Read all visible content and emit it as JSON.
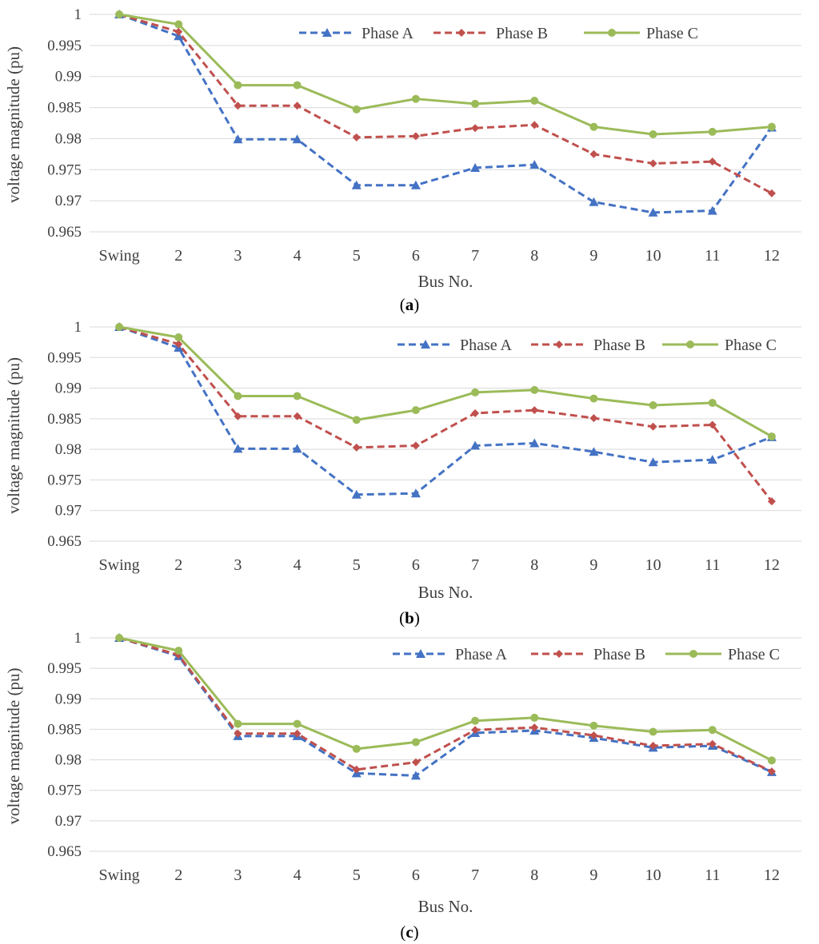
{
  "series_styles": [
    {
      "name": "Phase A",
      "color": "#4472c4",
      "dash": "dashed",
      "marker": "triangle"
    },
    {
      "name": "Phase B",
      "color": "#c0504d",
      "dash": "dashed",
      "marker": "diamond"
    },
    {
      "name": "Phase C",
      "color": "#9bbb59",
      "dash": "solid",
      "marker": "circle"
    }
  ],
  "chart_data": [
    {
      "type": "line",
      "caption": {
        "open": "(",
        "letter": "a",
        "close": ")"
      },
      "xlabel": "Bus No.",
      "ylabel": "voltage magnitude (pu)",
      "categories": [
        "Swing",
        "2",
        "3",
        "4",
        "5",
        "6",
        "7",
        "8",
        "9",
        "10",
        "11",
        "12"
      ],
      "ylim": [
        0.965,
        1
      ],
      "yticks": [
        "0.965",
        "0.97",
        "0.975",
        "0.98",
        "0.985",
        "0.99",
        "0.995",
        "1"
      ],
      "grid": true,
      "legend": "top-right",
      "series": [
        {
          "name": "Phase A",
          "values": [
            1.0,
            0.9965,
            0.9799,
            0.9799,
            0.9725,
            0.9725,
            0.9753,
            0.9758,
            0.9698,
            0.9681,
            0.9684,
            0.9818
          ]
        },
        {
          "name": "Phase B",
          "values": [
            1.0,
            0.9972,
            0.9853,
            0.9853,
            0.9802,
            0.9804,
            0.9817,
            0.9822,
            0.9775,
            0.976,
            0.9763,
            0.9712
          ]
        },
        {
          "name": "Phase C",
          "values": [
            1.0,
            0.9984,
            0.9886,
            0.9886,
            0.9847,
            0.9864,
            0.9856,
            0.9861,
            0.9819,
            0.9807,
            0.9811,
            0.9819
          ]
        }
      ]
    },
    {
      "type": "line",
      "caption": {
        "open": "(",
        "letter": "b",
        "close": ")"
      },
      "xlabel": "Bus No.",
      "ylabel": "voltage magnitude (pu)",
      "categories": [
        "Swing",
        "2",
        "3",
        "4",
        "5",
        "6",
        "7",
        "8",
        "9",
        "10",
        "11",
        "12"
      ],
      "ylim": [
        0.965,
        1
      ],
      "yticks": [
        "0.965",
        "0.97",
        "0.975",
        "0.98",
        "0.985",
        "0.99",
        "0.995",
        "1"
      ],
      "grid": true,
      "legend": "top-right",
      "series": [
        {
          "name": "Phase A",
          "values": [
            1.0,
            0.9966,
            0.9801,
            0.9801,
            0.9726,
            0.9728,
            0.9806,
            0.981,
            0.9796,
            0.9779,
            0.9783,
            0.982
          ]
        },
        {
          "name": "Phase B",
          "values": [
            1.0,
            0.9972,
            0.9854,
            0.9854,
            0.9803,
            0.9806,
            0.9859,
            0.9864,
            0.9851,
            0.9837,
            0.984,
            0.9715
          ]
        },
        {
          "name": "Phase C",
          "values": [
            1.0,
            0.9983,
            0.9887,
            0.9887,
            0.9848,
            0.9864,
            0.9893,
            0.9897,
            0.9883,
            0.9872,
            0.9876,
            0.9821
          ]
        }
      ]
    },
    {
      "type": "line",
      "caption": {
        "open": "(",
        "letter": "c",
        "close": ")"
      },
      "xlabel": "Bus No.",
      "ylabel": "voltage magnitude (pu)",
      "categories": [
        "Swing",
        "2",
        "3",
        "4",
        "5",
        "6",
        "7",
        "8",
        "9",
        "10",
        "11",
        "12"
      ],
      "ylim": [
        0.965,
        1
      ],
      "yticks": [
        "0.965",
        "0.97",
        "0.975",
        "0.98",
        "0.985",
        "0.99",
        "0.995",
        "1"
      ],
      "grid": true,
      "legend": "top-right",
      "series": [
        {
          "name": "Phase A",
          "values": [
            1.0,
            0.997,
            0.9839,
            0.9839,
            0.9778,
            0.9774,
            0.9844,
            0.9848,
            0.9836,
            0.982,
            0.9823,
            0.978
          ]
        },
        {
          "name": "Phase B",
          "values": [
            1.0,
            0.9972,
            0.9843,
            0.9843,
            0.9784,
            0.9796,
            0.9849,
            0.9853,
            0.984,
            0.9823,
            0.9826,
            0.9781
          ]
        },
        {
          "name": "Phase C",
          "values": [
            1.0,
            0.9979,
            0.9859,
            0.9859,
            0.9818,
            0.9829,
            0.9864,
            0.9869,
            0.9856,
            0.9846,
            0.9849,
            0.9799
          ]
        }
      ]
    }
  ]
}
